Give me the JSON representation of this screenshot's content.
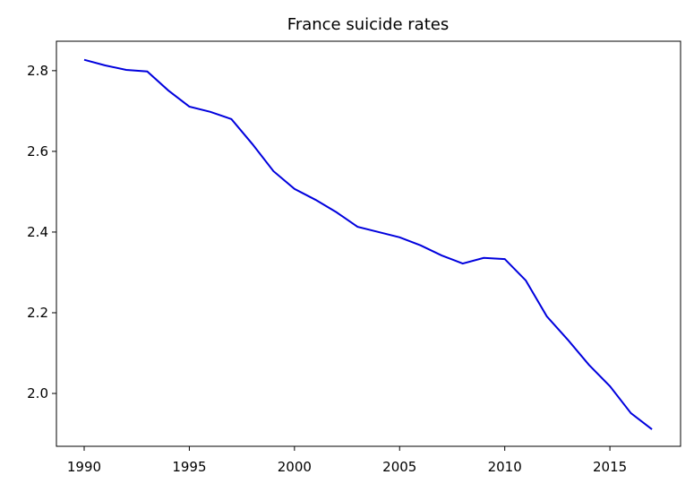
{
  "chart_data": {
    "type": "line",
    "title": "France suicide rates",
    "x": [
      1990,
      1991,
      1992,
      1993,
      1994,
      1995,
      1996,
      1997,
      1998,
      1999,
      2000,
      2001,
      2002,
      2003,
      2004,
      2005,
      2006,
      2007,
      2008,
      2009,
      2010,
      2011,
      2012,
      2013,
      2014,
      2015,
      2016,
      2017
    ],
    "series": [
      {
        "name": "France",
        "color": "#0000dd",
        "values": [
          2.827,
          2.813,
          2.802,
          2.798,
          2.751,
          2.711,
          2.698,
          2.68,
          2.618,
          2.551,
          2.507,
          2.48,
          2.449,
          2.413,
          2.4,
          2.387,
          2.367,
          2.342,
          2.322,
          2.336,
          2.333,
          2.28,
          2.191,
          2.133,
          2.071,
          2.018,
          1.951,
          1.911
        ]
      }
    ],
    "xlim": [
      1988.68,
      2018.36
    ],
    "xticks": [
      1990,
      1995,
      2000,
      2005,
      2010,
      2015
    ],
    "ylim": [
      1.869,
      2.873
    ],
    "yticks": [
      {
        "value": 2,
        "label": "2.0"
      },
      2.2,
      2.4,
      2.6,
      2.8
    ],
    "grid": false
  }
}
